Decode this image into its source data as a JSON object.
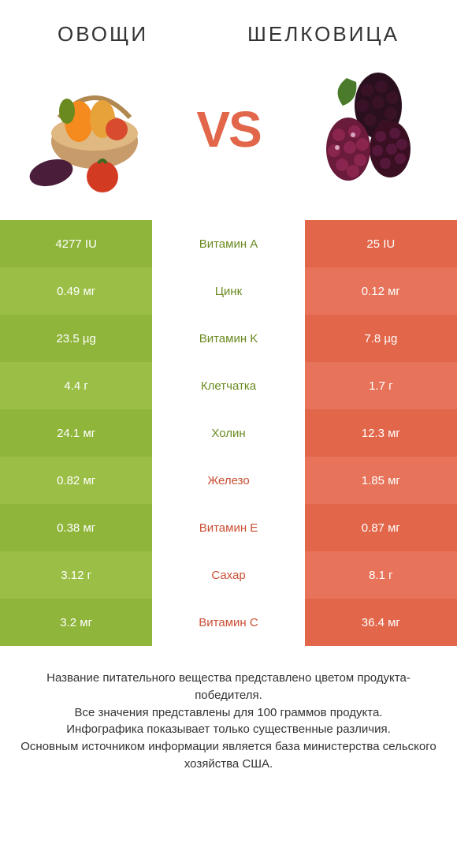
{
  "left": {
    "title": "ОВОЩИ",
    "colors": {
      "base": "#8fb53a",
      "alt": "#9bbf46"
    }
  },
  "right": {
    "title": "ШЕЛКОВИЦА",
    "colors": {
      "base": "#e2664a",
      "alt": "#e7745a"
    }
  },
  "vs": "VS",
  "rows": [
    {
      "label": "Витамин A",
      "left": "4277 IU",
      "right": "25 IU",
      "winner": "left"
    },
    {
      "label": "Цинк",
      "left": "0.49 мг",
      "right": "0.12 мг",
      "winner": "left"
    },
    {
      "label": "Витамин K",
      "left": "23.5 µg",
      "right": "7.8 µg",
      "winner": "left"
    },
    {
      "label": "Клетчатка",
      "left": "4.4 г",
      "right": "1.7 г",
      "winner": "left"
    },
    {
      "label": "Холин",
      "left": "24.1 мг",
      "right": "12.3 мг",
      "winner": "left"
    },
    {
      "label": "Железо",
      "left": "0.82 мг",
      "right": "1.85 мг",
      "winner": "right"
    },
    {
      "label": "Витамин E",
      "left": "0.38 мг",
      "right": "0.87 мг",
      "winner": "right"
    },
    {
      "label": "Сахар",
      "left": "3.12 г",
      "right": "8.1 г",
      "winner": "right"
    },
    {
      "label": "Витамин C",
      "left": "3.2 мг",
      "right": "36.4 мг",
      "winner": "right"
    }
  ],
  "footer": [
    "Название питательного вещества представлено цветом продукта-победителя.",
    "Все значения представлены для 100 граммов продукта.",
    "Инфографика показывает только существенные различия.",
    "Основным источником информации является база министерства сельского хозяйства США."
  ],
  "label_colors": {
    "left_win": "#6a8a1f",
    "right_win": "#c94f33"
  }
}
